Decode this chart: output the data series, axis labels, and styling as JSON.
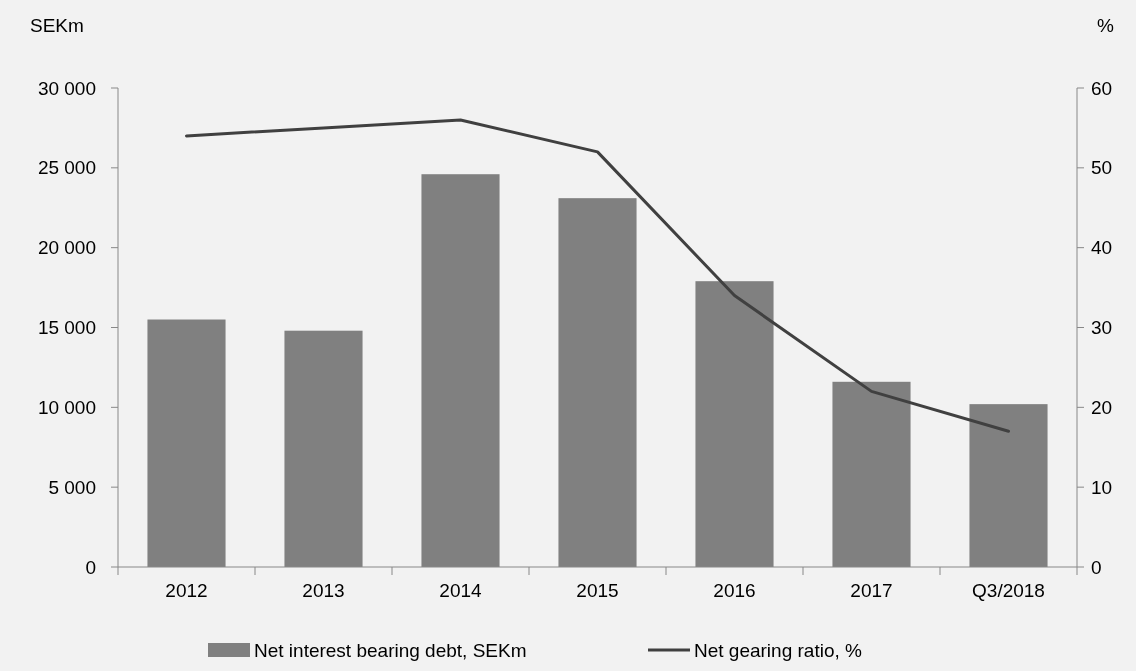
{
  "chart_data": {
    "type": "bar",
    "categories": [
      "2012",
      "2013",
      "2014",
      "2015",
      "2016",
      "2017",
      "Q3/2018"
    ],
    "ylabel": "SEKm",
    "y2label": "%",
    "series": [
      {
        "name": "Net interest bearing debt, SEKm",
        "color": "#808080",
        "values": [
          15500,
          14800,
          24600,
          23100,
          17900,
          11600,
          10200
        ]
      },
      {
        "name": "Net gearing ratio, %",
        "type": "line",
        "axis": "y2",
        "color": "#404040",
        "values": [
          54,
          55,
          56,
          52,
          34,
          22,
          17
        ]
      }
    ],
    "ylim": [
      0,
      30000
    ],
    "yticks": [
      0,
      {
        "value": 5000,
        "label": "5 000"
      },
      {
        "value": 10000,
        "label": "10 000"
      },
      {
        "value": 15000,
        "label": "15 000"
      },
      {
        "value": 20000,
        "label": "20 000"
      },
      {
        "value": 25000,
        "label": "25 000"
      },
      {
        "value": 30000,
        "label": "30 000"
      }
    ],
    "y2lim": [
      0,
      60
    ],
    "y2ticks": [
      0,
      10,
      20,
      30,
      40,
      50,
      60
    ],
    "grid": false,
    "legend": "bottom",
    "marker": "none",
    "line_style": "solid"
  }
}
